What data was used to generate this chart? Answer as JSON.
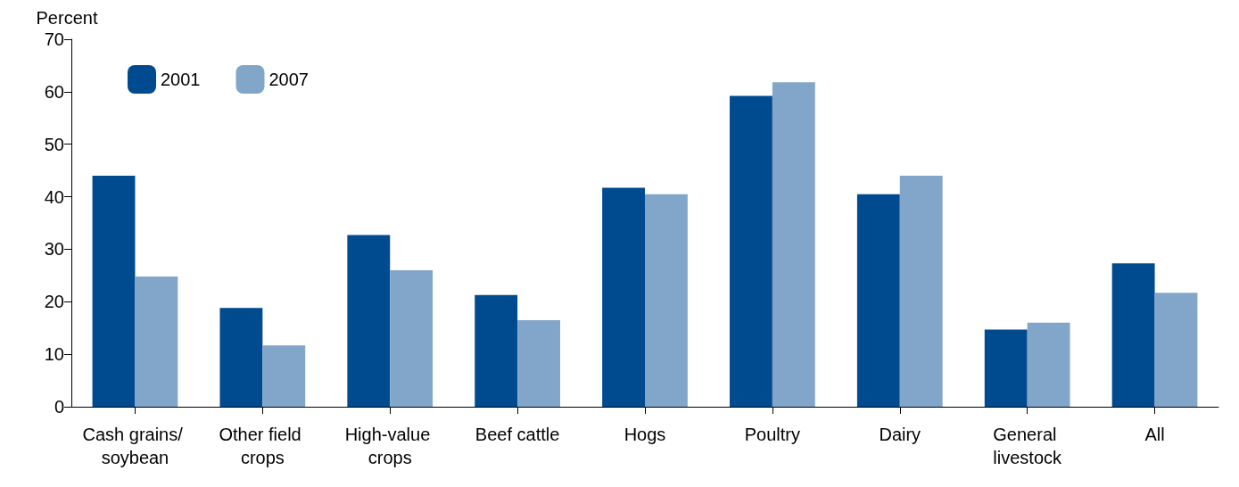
{
  "chart_data": {
    "type": "bar",
    "ylabel": "Percent",
    "categories": [
      "Cash grains/ soybean",
      "Other field crops",
      "High-value crops",
      "Beef cattle",
      "Hogs",
      "Poultry",
      "Dairy",
      "General livestock",
      "All"
    ],
    "series": [
      {
        "name": "2001",
        "color": "#004a8f",
        "values": [
          44,
          18.8,
          32.7,
          21.3,
          41.7,
          59.2,
          40.5,
          14.7,
          27.3
        ]
      },
      {
        "name": "2007",
        "color": "#82a6c9",
        "values": [
          24.8,
          11.7,
          26,
          16.5,
          40.5,
          61.8,
          44,
          16,
          21.7
        ]
      }
    ],
    "ylim": [
      0,
      70
    ],
    "yticks": [
      0,
      10,
      20,
      30,
      40,
      50,
      60,
      70
    ],
    "grid": false,
    "legend": "top left"
  }
}
